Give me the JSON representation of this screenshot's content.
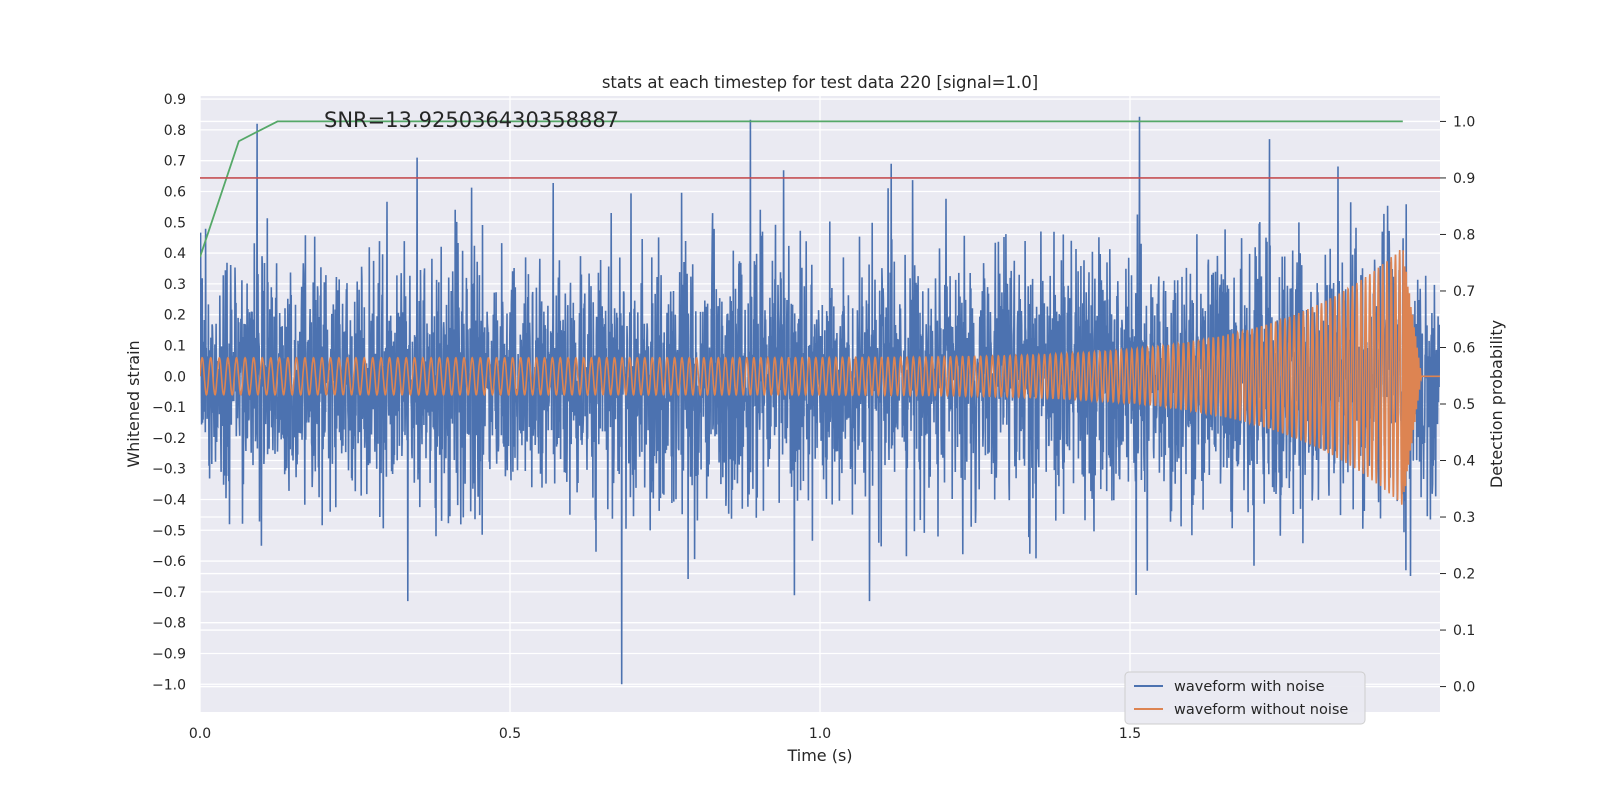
{
  "chart_data": {
    "type": "line",
    "title": "stats at each timestep for test data 220 [signal=1.0]",
    "xlabel": "Time (s)",
    "ylabel": "Whitened strain",
    "y2label": "Detection probability",
    "xlim": [
      0.0,
      2.0
    ],
    "ylim": [
      -1.09,
      0.91
    ],
    "y2lim": [
      -0.045,
      1.045
    ],
    "xticks": [
      "0.0",
      "0.5",
      "1.0",
      "1.5"
    ],
    "xtick_values": [
      0.0,
      0.5,
      1.0,
      1.5
    ],
    "yticks": [
      "0.9",
      "0.8",
      "0.7",
      "0.6",
      "0.5",
      "0.4",
      "0.3",
      "0.2",
      "0.1",
      "0.0",
      "−0.1",
      "−0.2",
      "−0.3",
      "−0.4",
      "−0.5",
      "−0.6",
      "−0.7",
      "−0.8",
      "−0.9",
      "−1.0"
    ],
    "ytick_values": [
      0.9,
      0.8,
      0.7,
      0.6,
      0.5,
      0.4,
      0.3,
      0.2,
      0.1,
      0.0,
      -0.1,
      -0.2,
      -0.3,
      -0.4,
      -0.5,
      -0.6,
      -0.7,
      -0.8,
      -0.9,
      -1.0
    ],
    "y2ticks": [
      "1.0",
      "0.9",
      "0.8",
      "0.7",
      "0.6",
      "0.5",
      "0.4",
      "0.3",
      "0.2",
      "0.1",
      "0.0"
    ],
    "y2tick_values": [
      1.0,
      0.9,
      0.8,
      0.7,
      0.6,
      0.5,
      0.4,
      0.3,
      0.2,
      0.1,
      0.0
    ],
    "annotation": "SNR=13.925036430358887",
    "annotation_pos": {
      "x": 0.2,
      "y": 0.81
    },
    "legend_position": "lower-right",
    "grid": true,
    "series": [
      {
        "name": "waveform with noise",
        "color": "#4c72b0",
        "axis": "left",
        "kind": "noise",
        "approx_std": 0.2,
        "notable_peaks": [
          {
            "x": 0.092,
            "y": 0.82
          },
          {
            "x": 0.35,
            "y": 0.71
          },
          {
            "x": 0.68,
            "y": -1.0
          },
          {
            "x": 0.335,
            "y": -0.73
          },
          {
            "x": 1.08,
            "y": -0.73
          },
          {
            "x": 1.115,
            "y": 0.69
          },
          {
            "x": 1.51,
            "y": -0.71
          },
          {
            "x": 1.725,
            "y": 0.77
          },
          {
            "x": 1.945,
            "y": -0.63
          }
        ]
      },
      {
        "name": "waveform without noise",
        "color": "#dd8452",
        "axis": "left",
        "kind": "chirp",
        "amplitude_start": 0.06,
        "amplitude_peak": 0.42,
        "cycles": 140,
        "merger_time": 1.94,
        "end_time": 1.97,
        "tail_value": 0.0
      },
      {
        "name": "",
        "color": "#55a868",
        "axis": "right",
        "x": [
          0.0,
          0.0625,
          0.125,
          0.25,
          0.5,
          1.0,
          1.5,
          1.94
        ],
        "y": [
          0.76,
          0.965,
          1.0,
          1.0,
          1.0,
          1.0,
          1.0,
          1.0
        ]
      },
      {
        "name": "",
        "color": "#c44e52",
        "axis": "right",
        "x": [
          0.0,
          2.0
        ],
        "y": [
          0.9,
          0.9
        ]
      }
    ]
  }
}
